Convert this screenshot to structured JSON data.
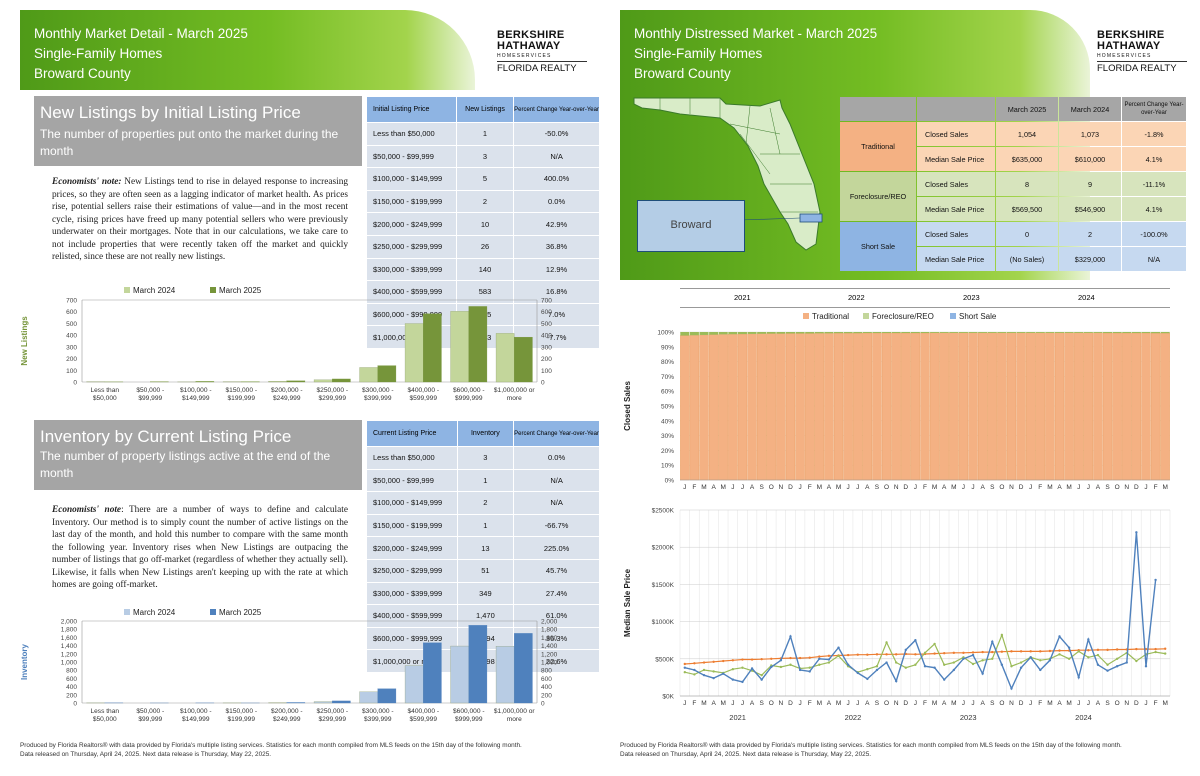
{
  "left": {
    "header": {
      "line1": "Monthly Market Detail - March 2025",
      "line2": "Single-Family Homes",
      "line3": "Broward County"
    },
    "logo": {
      "l1": "BERKSHIRE",
      "l2": "HATHAWAY",
      "l3": "HOMESERVICES",
      "l4": "FLORIDA REALTY"
    },
    "new_listings": {
      "title": "New Listings by Initial Listing Price",
      "desc": "The number of properties put onto the market during the month",
      "note_label": "Economists' note:",
      "note": "New Listings tend to rise in delayed response to increasing prices, so they are often seen as a lagging indicator of market health. As prices rise, potential sellers raise their estimations of value—and in the most recent cycle, rising prices have freed up many potential sellers who were previously underwater on their mortgages. Note that in our calculations, we take care to not include properties that were recently taken off the market and quickly relisted, since these are not really new listings.",
      "table": {
        "headers": [
          "Initial Listing Price",
          "New Listings",
          "Percent Change Year-over-Year"
        ],
        "rows": [
          [
            "Less than $50,000",
            "1",
            "-50.0%"
          ],
          [
            "$50,000 - $99,999",
            "3",
            "N/A"
          ],
          [
            "$100,000 - $149,999",
            "5",
            "400.0%"
          ],
          [
            "$150,000 - $199,999",
            "2",
            "0.0%"
          ],
          [
            "$200,000 - $249,999",
            "10",
            "42.9%"
          ],
          [
            "$250,000 - $299,999",
            "26",
            "36.8%"
          ],
          [
            "$300,000 - $399,999",
            "140",
            "12.9%"
          ],
          [
            "$400,000 - $599,999",
            "583",
            "16.8%"
          ],
          [
            "$600,000 - $999,999",
            "645",
            "7.0%"
          ],
          [
            "$1,000,000 or more",
            "383",
            "-7.7%"
          ]
        ]
      }
    },
    "inventory": {
      "title": "Inventory by Current Listing Price",
      "desc": "The number of property listings active at the end of the month",
      "note_label": "Economists' note",
      "note": ": There are a number of ways to define and calculate Inventory. Our method is to simply count the number of active listings on the last day of the month, and hold this number to compare with the same month the following year. Inventory rises when New Listings are outpacing the number of listings that go off-market (regardless of whether they actually sell). Likewise, it falls when New Listings aren't keeping up with the rate at which homes are going off-market.",
      "table": {
        "headers": [
          "Current Listing Price",
          "Inventory",
          "Percent Change Year-over-Year"
        ],
        "rows": [
          [
            "Less than $50,000",
            "3",
            "0.0%"
          ],
          [
            "$50,000 - $99,999",
            "1",
            "N/A"
          ],
          [
            "$100,000 - $149,999",
            "2",
            "N/A"
          ],
          [
            "$150,000 - $199,999",
            "1",
            "-66.7%"
          ],
          [
            "$200,000 - $249,999",
            "13",
            "225.0%"
          ],
          [
            "$250,000 - $299,999",
            "51",
            "45.7%"
          ],
          [
            "$300,000 - $399,999",
            "349",
            "27.4%"
          ],
          [
            "$400,000 - $599,999",
            "1,470",
            "61.0%"
          ],
          [
            "$600,000 - $999,999",
            "1,894",
            "36.3%"
          ],
          [
            "$1,000,000 or more",
            "1,698",
            "22.6%"
          ]
        ]
      }
    },
    "footer": {
      "l1": "Produced by Florida Realtors® with data provided by Florida's multiple listing services. Statistics for each month compiled from MLS feeds on the 15th day of the following month.",
      "l2": "Data released on Thursday, April 24, 2025. Next data release is Thursday, May 22, 2025."
    }
  },
  "right": {
    "header": {
      "line1": "Monthly Distressed Market - March 2025",
      "line2": "Single-Family Homes",
      "line3": "Broward County"
    },
    "logo": {
      "l1": "BERKSHIRE",
      "l2": "HATHAWAY",
      "l3": "HOMESERVICES",
      "l4": "FLORIDA REALTY"
    },
    "map": {
      "label": "Broward"
    },
    "table": {
      "headers": [
        "March 2025",
        "March 2024",
        "Percent Change Year-over-Year"
      ],
      "groups": [
        {
          "name": "Traditional",
          "rows": [
            [
              "Closed Sales",
              "1,054",
              "1,073",
              "-1.8%"
            ],
            [
              "Median Sale Price",
              "$635,000",
              "$610,000",
              "4.1%"
            ]
          ]
        },
        {
          "name": "Foreclosure/REO",
          "rows": [
            [
              "Closed Sales",
              "8",
              "9",
              "-11.1%"
            ],
            [
              "Median Sale Price",
              "$569,500",
              "$546,900",
              "4.1%"
            ]
          ]
        },
        {
          "name": "Short Sale",
          "rows": [
            [
              "Closed Sales",
              "0",
              "2",
              "-100.0%"
            ],
            [
              "Median Sale Price",
              "(No Sales)",
              "$329,000",
              "N/A"
            ]
          ]
        }
      ]
    },
    "years": [
      "2021",
      "2022",
      "2023",
      "2024"
    ],
    "footer": {
      "l1": "Produced by Florida Realtors® with data provided by Florida's multiple listing services. Statistics for each month compiled from MLS feeds on the 15th day of the following month.",
      "l2": "Data released on Thursday, April 24, 2025. Next data release is Thursday, May 22, 2025."
    }
  },
  "colors": {
    "green_dark": "#76953a",
    "green_light": "#c3d69b",
    "blue_dark": "#4f81bd",
    "blue_light": "#b8cce4",
    "trad": "#f4b183",
    "fore": "#c3d69b",
    "short": "#8eb4e3",
    "trad_line": "#ed7d31",
    "fore_line": "#9bbb59",
    "short_line": "#4f81bd"
  },
  "chart_data": [
    {
      "type": "bar",
      "ylabel": "New Listings",
      "categories": [
        "Less than $50,000",
        "$50,000 - $99,999",
        "$100,000 - $149,999",
        "$150,000 - $199,999",
        "$200,000 - $249,999",
        "$250,000 - $299,999",
        "$300,000 - $399,999",
        "$400,000 - $599,999",
        "$600,000 - $999,999",
        "$1,000,000 or more"
      ],
      "series": [
        {
          "name": "March 2024",
          "values": [
            2,
            0,
            1,
            2,
            7,
            19,
            124,
            499,
            603,
            415
          ]
        },
        {
          "name": "March 2025",
          "values": [
            1,
            3,
            5,
            2,
            10,
            26,
            140,
            583,
            645,
            383
          ]
        }
      ],
      "ylim": [
        0,
        700
      ],
      "ticks": [
        0,
        100,
        200,
        300,
        400,
        500,
        600,
        700
      ]
    },
    {
      "type": "bar",
      "ylabel": "Inventory",
      "categories": [
        "Less than $50,000",
        "$50,000 - $99,999",
        "$100,000 - $149,999",
        "$150,000 - $199,999",
        "$200,000 - $249,999",
        "$250,000 - $299,999",
        "$300,000 - $399,999",
        "$400,000 - $599,999",
        "$600,000 - $999,999",
        "$1,000,000 or more"
      ],
      "series": [
        {
          "name": "March 2024",
          "values": [
            3,
            0,
            0,
            3,
            4,
            35,
            274,
            913,
            1389,
            1385
          ]
        },
        {
          "name": "March 2025",
          "values": [
            3,
            1,
            2,
            1,
            13,
            51,
            349,
            1470,
            1894,
            1698
          ]
        }
      ],
      "ylim": [
        0,
        2000
      ],
      "ticks": [
        0,
        200,
        400,
        600,
        800,
        1000,
        1200,
        1400,
        1600,
        1800,
        2000
      ]
    },
    {
      "type": "bar",
      "stacked": true,
      "ylabel": "Closed Sales",
      "legend": [
        "Traditional",
        "Foreclosure/REO",
        "Short Sale"
      ],
      "months": "J F M A M J J A S O N D J F M A M J J A S O N D J F M A M J J A S O N D J F M A M J J A S O N D J F M",
      "traditional_pct": [
        97.6,
        97.8,
        98,
        98.2,
        98.4,
        98.5,
        98.6,
        98.7,
        98.8,
        98.9,
        98.9,
        99,
        99,
        99,
        99.1,
        99.1,
        99.2,
        99.2,
        99.2,
        99.3,
        99.3,
        99.3,
        99.3,
        99.3,
        99.3,
        99.3,
        99.4,
        99.4,
        99.4,
        99.4,
        99.4,
        99.4,
        99.4,
        99.4,
        99.4,
        99.4,
        99.4,
        99.4,
        99.4,
        99.4,
        99.4,
        99.4,
        99.4,
        99.4,
        99.3,
        99.3,
        99.3,
        99.3,
        99.3,
        99.2,
        99.2
      ],
      "ylim": [
        0,
        100
      ],
      "ticks": [
        0,
        10,
        20,
        30,
        40,
        50,
        60,
        70,
        80,
        90,
        100
      ]
    },
    {
      "type": "line",
      "ylabel": "Median Sale Price",
      "months": "J F M A M J J A S O N D J F M A M J J A S O N D J F M A M J J A S O N D J F M A M J J A S O N D J F M",
      "ylim": [
        0,
        2500
      ],
      "ticks": [
        "$0K",
        "$500K",
        "$1000K",
        "$1500K",
        "$2000K",
        "$2500K"
      ],
      "series": [
        {
          "name": "Traditional",
          "values": [
            430,
            440,
            450,
            460,
            470,
            480,
            490,
            490,
            495,
            500,
            505,
            510,
            510,
            515,
            530,
            540,
            545,
            550,
            555,
            555,
            560,
            560,
            560,
            565,
            560,
            565,
            570,
            575,
            580,
            580,
            585,
            590,
            590,
            595,
            600,
            600,
            600,
            600,
            605,
            610,
            610,
            615,
            615,
            620,
            620,
            625,
            625,
            630,
            630,
            630,
            635
          ]
        },
        {
          "name": "Foreclosure/REO",
          "values": [
            320,
            290,
            350,
            330,
            310,
            360,
            380,
            340,
            280,
            410,
            390,
            420,
            370,
            380,
            420,
            450,
            540,
            400,
            320,
            360,
            400,
            720,
            450,
            380,
            420,
            580,
            700,
            420,
            450,
            520,
            430,
            480,
            500,
            820,
            400,
            450,
            520,
            480,
            500,
            560,
            500,
            600,
            520,
            550,
            420,
            500,
            580,
            470,
            560,
            590,
            570
          ]
        },
        {
          "name": "Short Sale",
          "values": [
            380,
            350,
            280,
            240,
            300,
            220,
            190,
            370,
            220,
            390,
            480,
            800,
            350,
            330,
            500,
            490,
            650,
            420,
            310,
            230,
            350,
            450,
            200,
            620,
            750,
            400,
            380,
            220,
            350,
            500,
            550,
            300,
            730,
            420,
            100,
            380,
            520,
            350,
            480,
            800,
            650,
            250,
            760,
            420,
            340,
            400,
            450,
            2200,
            400,
            1560,
            null
          ]
        }
      ]
    }
  ]
}
